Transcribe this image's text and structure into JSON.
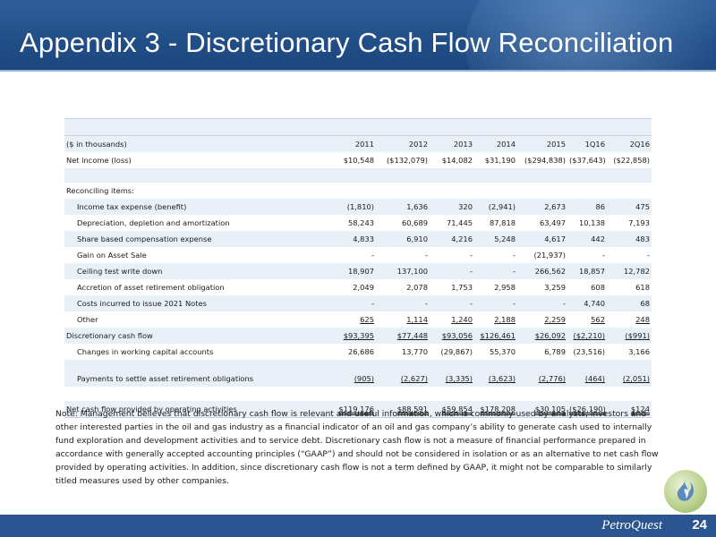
{
  "title": "Appendix 3 - Discretionary Cash Flow Reconciliation",
  "table": {
    "units_label": "($ in thousands)",
    "columns": [
      "2011",
      "2012",
      "2013",
      "2014",
      "2015",
      "1Q16",
      "2Q16"
    ],
    "net_income": {
      "label": "Net income (loss)",
      "values": [
        "$10,548",
        "($132,079)",
        "$14,082",
        "$31,190",
        "($294,838)",
        "($37,643)",
        "($22,858)"
      ]
    },
    "reconciling_label": "Reconciling items:",
    "items": [
      {
        "label": "Income tax expense (benefit)",
        "values": [
          "(1,810)",
          "1,636",
          "320",
          "(2,941)",
          "2,673",
          "86",
          "475"
        ]
      },
      {
        "label": "Depreciation, depletion and amortization",
        "values": [
          "58,243",
          "60,689",
          "71,445",
          "87,818",
          "63,497",
          "10,138",
          "7,193"
        ]
      },
      {
        "label": "Share based compensation expense",
        "values": [
          "4,833",
          "6,910",
          "4,216",
          "5,248",
          "4,617",
          "442",
          "483"
        ]
      },
      {
        "label": "Gain on Asset Sale",
        "values": [
          "-",
          "-",
          "-",
          "-",
          "(21,937)",
          "-",
          "-"
        ]
      },
      {
        "label": "Ceiling test write down",
        "values": [
          "18,907",
          "137,100",
          "-",
          "-",
          "266,562",
          "18,857",
          "12,782"
        ]
      },
      {
        "label": "Accretion of asset retirement obligation",
        "values": [
          "2,049",
          "2,078",
          "1,753",
          "2,958",
          "3,259",
          "608",
          "618"
        ]
      },
      {
        "label": "Costs incurred to issue 2021 Notes",
        "values": [
          "-",
          "-",
          "-",
          "-",
          "-",
          "4,740",
          "68"
        ]
      },
      {
        "label": "Other",
        "values": [
          "625",
          "1,114",
          "1,240",
          "2,188",
          "2,259",
          "562",
          "248"
        ]
      }
    ],
    "discretionary": {
      "label": "Discretionary cash flow",
      "values": [
        "$93,395",
        "$77,448",
        "$93,056",
        "$126,461",
        "$26,092",
        "($2,210)",
        "($991)"
      ]
    },
    "working_capital": {
      "label": "Changes in working capital accounts",
      "values": [
        "26,686",
        "13,770",
        "(29,867)",
        "55,370",
        "6,789",
        "(23,516)",
        "3,166"
      ]
    },
    "aro_payments": {
      "label": "Payments to settle asset retirement obligations",
      "values": [
        "(905)",
        "(2,627)",
        "(3,335)",
        "(3,623)",
        "(2,776)",
        "(464)",
        "(2,051)"
      ]
    },
    "net_cash": {
      "label": "Net cash flow provided by operating activities",
      "values": [
        "$119,176",
        "$88,591",
        "$59,854",
        "$178,208",
        "$30,105",
        "($26,190)",
        "$124"
      ]
    }
  },
  "note": "Note:  Management believes that discretionary cash flow is relevant and useful information, which is commonly used by analysts, investors and other interested parties in the oil and gas industry as a financial indicator of an oil and gas company’s ability to generate cash used to internally fund exploration and development activities and to service debt.  Discretionary cash flow is not a measure of financial performance prepared in accordance with generally accepted accounting principles (“GAAP”) and should not be considered in isolation or as an alternative to net cash flow provided by operating activities.  In addition, since discretionary cash flow is not a term defined by GAAP, it might not be comparable to similarly titled measures used by other companies.",
  "footer": {
    "logo_text": "PetroQuest",
    "page_number": "24"
  },
  "colors": {
    "header_blue": "#224f88",
    "band": "#eaf0f8",
    "footer_blue": "#2a5590"
  }
}
